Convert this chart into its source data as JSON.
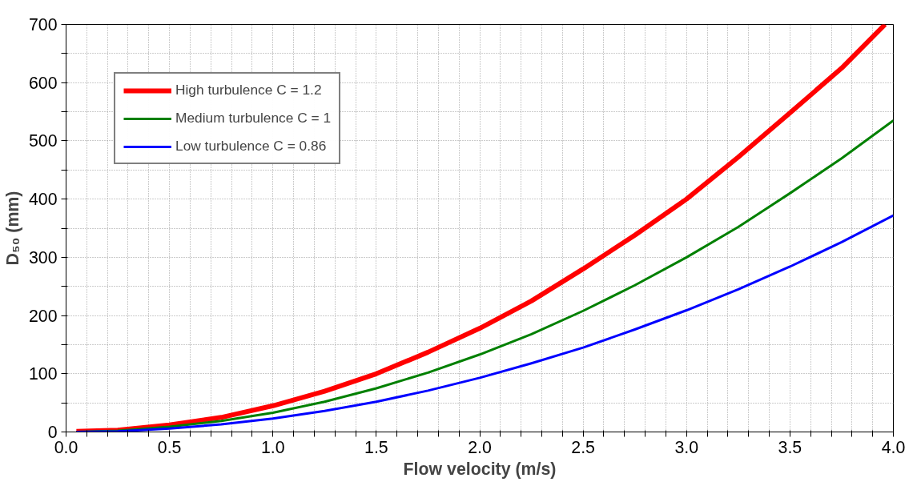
{
  "chart_data": {
    "type": "line",
    "xlabel": "Flow velocity (m/s)",
    "ylabel": "D₅₀ (mm)",
    "xlim": [
      0,
      4
    ],
    "ylim": [
      0,
      700
    ],
    "xticks": [
      {
        "value": 0,
        "label": "0.0"
      },
      {
        "value": 0.1,
        "label": null
      },
      {
        "value": 0.2,
        "label": null
      },
      {
        "value": 0.3,
        "label": null
      },
      {
        "value": 0.4,
        "label": null
      },
      {
        "value": 0.5,
        "label": "0.5"
      },
      {
        "value": 0.6,
        "label": null
      },
      {
        "value": 0.7,
        "label": null
      },
      {
        "value": 0.8,
        "label": null
      },
      {
        "value": 0.9,
        "label": null
      },
      {
        "value": 1,
        "label": "1.0"
      },
      {
        "value": 1.1,
        "label": null
      },
      {
        "value": 1.2,
        "label": null
      },
      {
        "value": 1.3,
        "label": null
      },
      {
        "value": 1.4,
        "label": null
      },
      {
        "value": 1.5,
        "label": "1.5"
      },
      {
        "value": 1.6,
        "label": null
      },
      {
        "value": 1.7,
        "label": null
      },
      {
        "value": 1.8,
        "label": null
      },
      {
        "value": 1.9,
        "label": null
      },
      {
        "value": 2,
        "label": "2.0"
      },
      {
        "value": 2.1,
        "label": null
      },
      {
        "value": 2.2,
        "label": null
      },
      {
        "value": 2.3,
        "label": null
      },
      {
        "value": 2.4,
        "label": null
      },
      {
        "value": 2.5,
        "label": "2.5"
      },
      {
        "value": 2.6,
        "label": null
      },
      {
        "value": 2.7,
        "label": null
      },
      {
        "value": 2.8,
        "label": null
      },
      {
        "value": 2.9,
        "label": null
      },
      {
        "value": 3,
        "label": "3.0"
      },
      {
        "value": 3.1,
        "label": null
      },
      {
        "value": 3.2,
        "label": null
      },
      {
        "value": 3.3,
        "label": null
      },
      {
        "value": 3.4,
        "label": null
      },
      {
        "value": 3.5,
        "label": "3.5"
      },
      {
        "value": 3.6,
        "label": null
      },
      {
        "value": 3.7,
        "label": null
      },
      {
        "value": 3.8,
        "label": null
      },
      {
        "value": 3.9,
        "label": null
      },
      {
        "value": 4,
        "label": "4.0"
      }
    ],
    "yticks": [
      0,
      {
        "value": 50,
        "label": null
      },
      100,
      {
        "value": 150,
        "label": null
      },
      200,
      {
        "value": 250,
        "label": null
      },
      300,
      {
        "value": 350,
        "label": null
      },
      400,
      {
        "value": 450,
        "label": null
      },
      500,
      {
        "value": 550,
        "label": null
      },
      600,
      {
        "value": 650,
        "label": null
      },
      700
    ],
    "grid": true,
    "legend": "top left",
    "line_style": "solid",
    "marker": "none",
    "series": [
      {
        "name": "High turbulence C = 1.2",
        "color": "#ff0000",
        "x": [
          0.05,
          0.25,
          0.5,
          0.75,
          1.0,
          1.25,
          1.5,
          1.75,
          2.0,
          2.25,
          2.5,
          2.75,
          3.0,
          3.25,
          3.5,
          3.75,
          3.96
        ],
        "values": [
          1,
          3,
          12,
          25,
          45,
          70,
          100,
          137,
          178,
          225,
          280,
          338,
          400,
          472,
          548,
          625,
          700
        ]
      },
      {
        "name": "Medium turbulence C = 1",
        "color": "#008000",
        "x": [
          0.05,
          0.25,
          0.5,
          0.75,
          1.0,
          1.25,
          1.5,
          1.75,
          2.0,
          2.25,
          2.5,
          2.75,
          3.0,
          3.25,
          3.5,
          3.75,
          4.0
        ],
        "values": [
          0,
          2,
          9,
          19,
          33,
          52,
          75,
          102,
          133,
          168,
          208,
          252,
          300,
          352,
          410,
          470,
          535
        ]
      },
      {
        "name": "Low turbulence C = 0.86",
        "color": "#0000ff",
        "x": [
          0.05,
          0.25,
          0.5,
          0.75,
          1.0,
          1.25,
          1.5,
          1.75,
          2.0,
          2.25,
          2.5,
          2.75,
          3.0,
          3.25,
          3.5,
          3.75,
          4.0
        ],
        "values": [
          0,
          1,
          6,
          13,
          23,
          36,
          52,
          71,
          93,
          118,
          145,
          176,
          209,
          245,
          284,
          326,
          372
        ]
      }
    ]
  }
}
